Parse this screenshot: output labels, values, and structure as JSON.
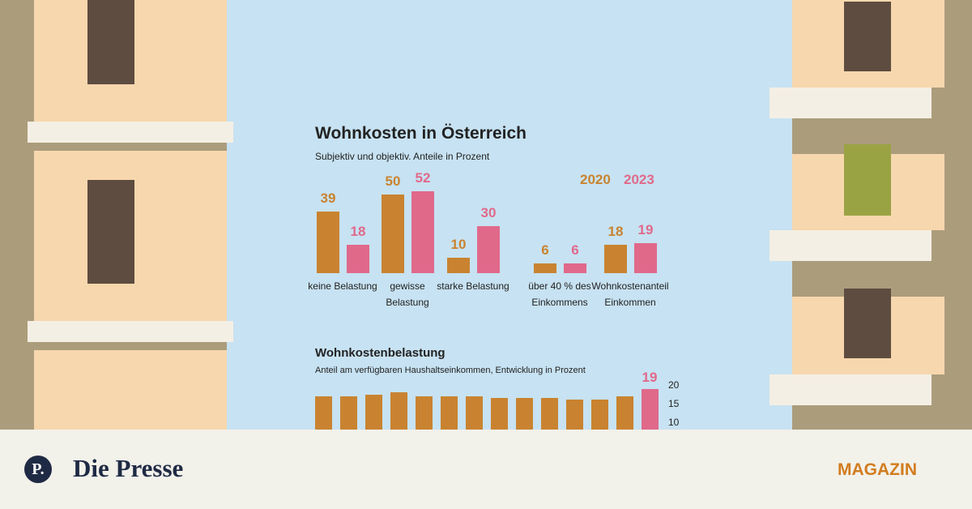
{
  "chart_data": [
    {
      "type": "bar",
      "title": "Wohnkosten in Österreich",
      "subtitle": "Subjektiv und objektiv. Anteile in Prozent",
      "categories": [
        "keine Belastung",
        "gewisse Belastung",
        "starke Belastung",
        "über 40 % des Einkommens",
        "Wohnkostenanteil Einkommen"
      ],
      "series": [
        {
          "name": "2020",
          "color": "#c98330",
          "values": [
            39,
            50,
            10,
            6,
            18
          ]
        },
        {
          "name": "2023",
          "color": "#e0698a",
          "values": [
            18,
            52,
            30,
            6,
            19
          ]
        }
      ]
    },
    {
      "type": "bar",
      "title": "Wohnkostenbelastung",
      "subtitle": "Anteil am verfügbaren Haushaltseinkommen, Entwicklung in Prozent",
      "values": [
        17,
        17,
        17.5,
        18,
        17,
        17,
        17,
        16.5,
        16.5,
        16.5,
        16,
        16,
        17,
        19
      ],
      "colors": [
        "#c98330",
        "#c98330",
        "#c98330",
        "#c98330",
        "#c98330",
        "#c98330",
        "#c98330",
        "#c98330",
        "#c98330",
        "#c98330",
        "#c98330",
        "#c98330",
        "#c98330",
        "#e0698a"
      ],
      "ylim": [
        0,
        20
      ],
      "yticks": [
        10,
        15,
        20
      ]
    }
  ],
  "footer": {
    "logo": "P.",
    "brand": "Die Presse",
    "section": "MAGAZIN"
  }
}
